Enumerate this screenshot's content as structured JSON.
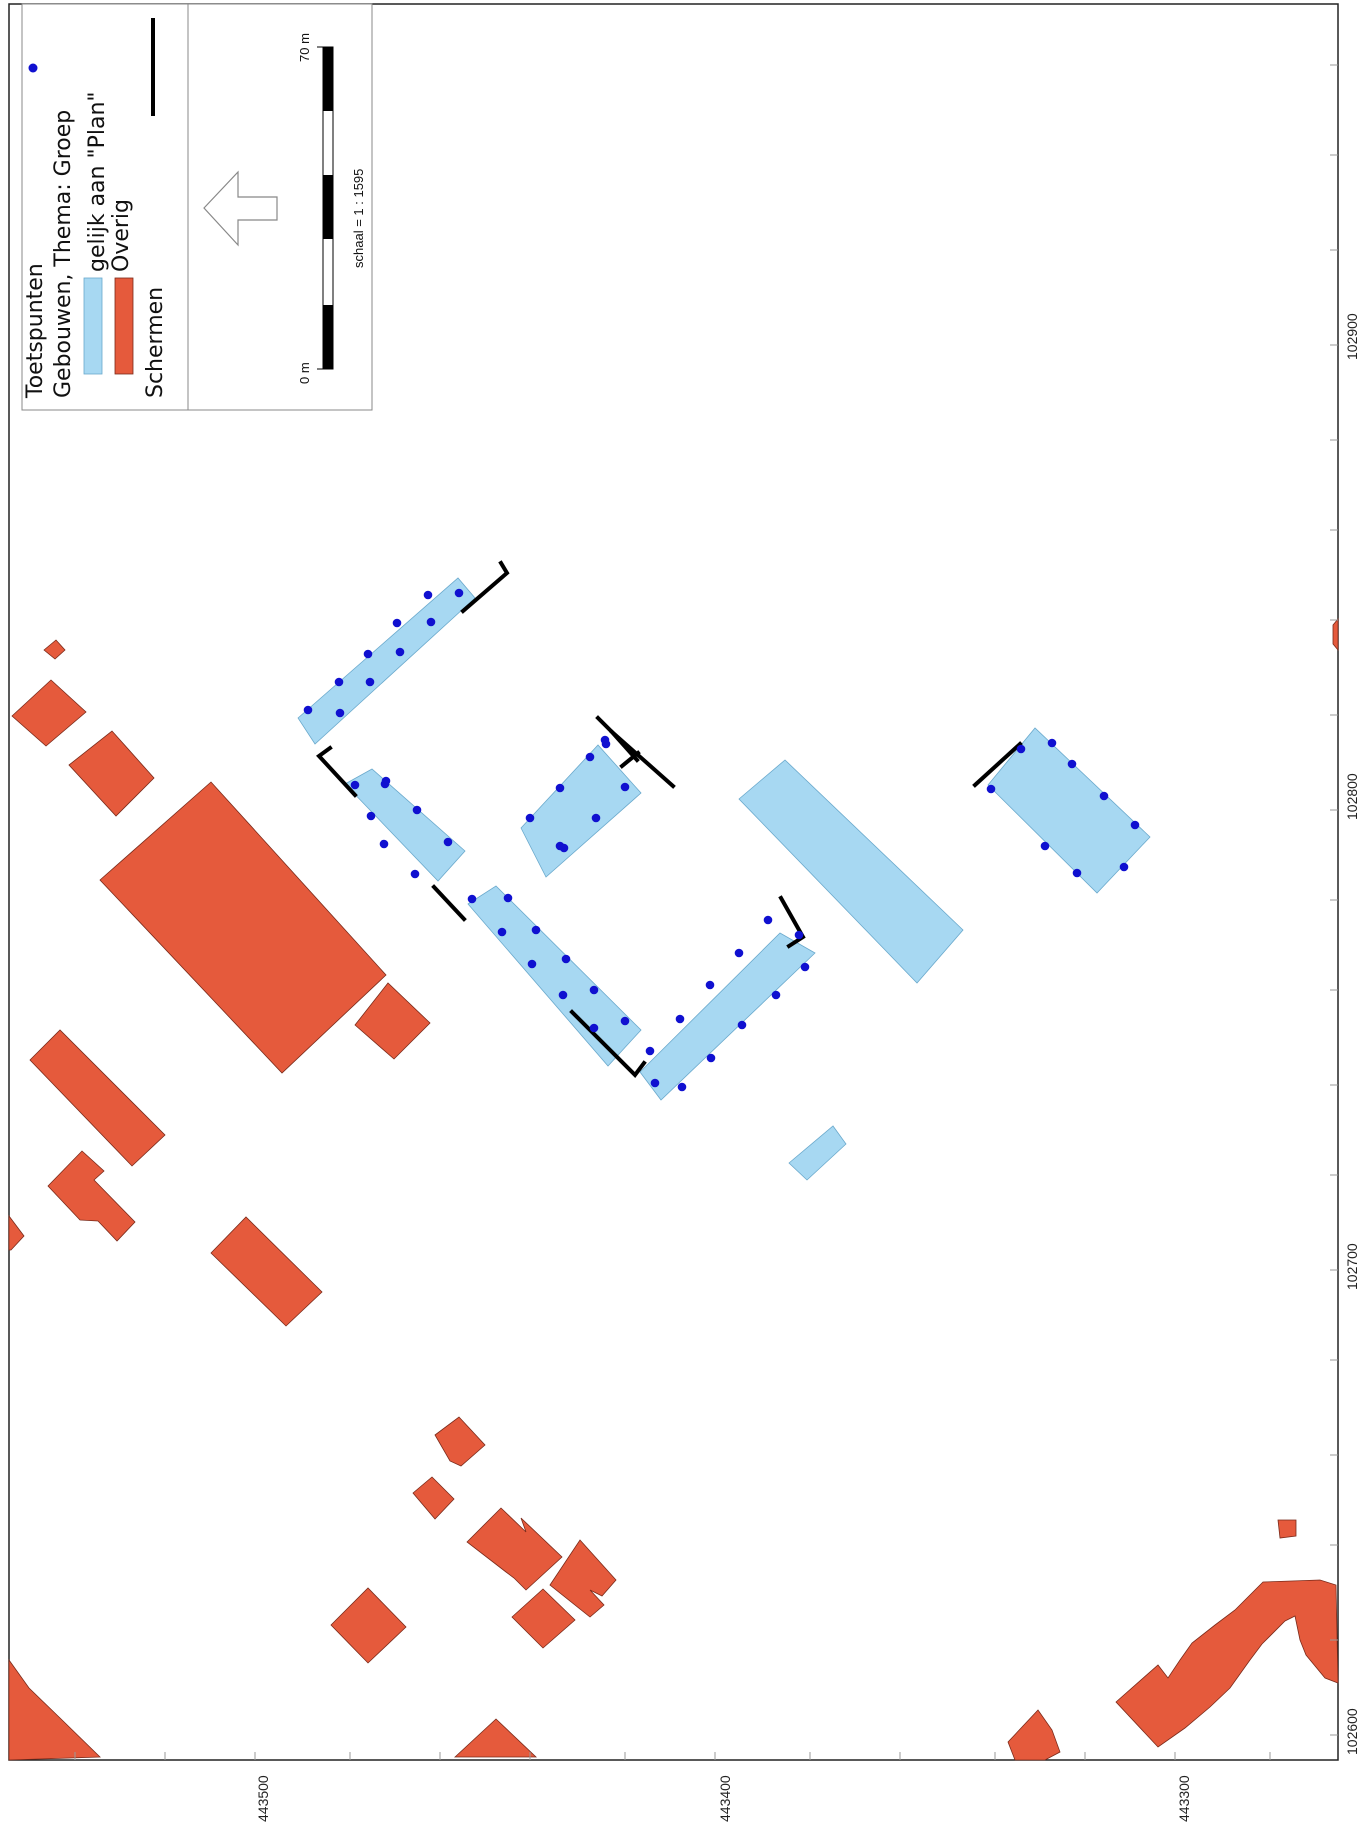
{
  "legend": {
    "title": "Toetspunten",
    "group_title": "Gebouwen, Thema: Groep",
    "plan_label": "gelijk aan \"Plan\"",
    "other_label": "Overig",
    "screens_label": "Schermen"
  },
  "scalebar": {
    "start_label": "0 m",
    "end_label": "70 m",
    "scale_text": "schaal = 1 : 1595"
  },
  "axes": {
    "right_labels": [
      "102900",
      "102800",
      "102700",
      "102600"
    ],
    "bottom_labels": [
      "443500",
      "443400",
      "443300"
    ]
  },
  "colors": {
    "plan": "#a7d8f2",
    "other": "#e55a3c",
    "points": "#1010d0",
    "screens": "#000000"
  }
}
